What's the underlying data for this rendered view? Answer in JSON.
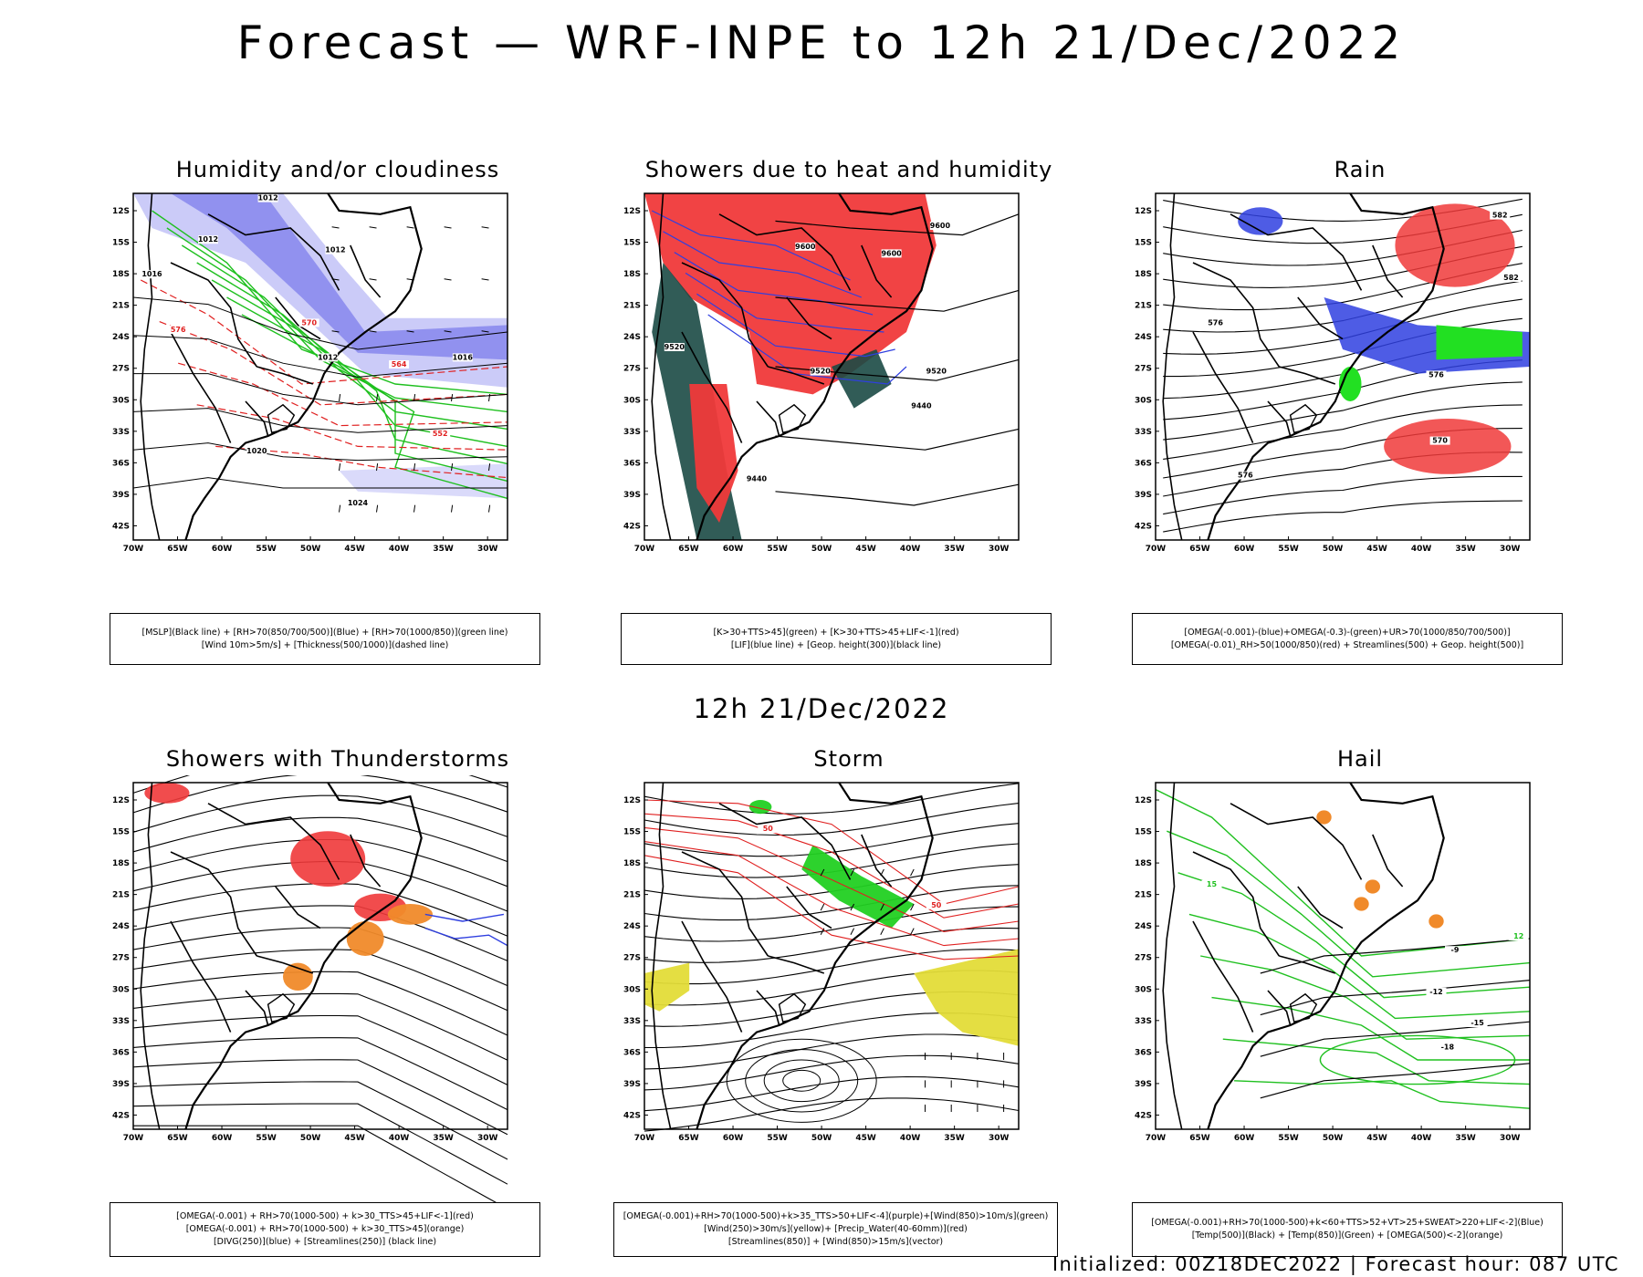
{
  "title": "Forecast — WRF-INPE to 12h 21/Dec/2022",
  "mid_title": "12h 21/Dec/2022",
  "footer": "Initialized: 00Z18DEC2022 | Forecast hour: 087 UTC",
  "axes": {
    "lat_labels": [
      "12S",
      "15S",
      "18S",
      "21S",
      "24S",
      "27S",
      "30S",
      "33S",
      "36S",
      "39S",
      "42S"
    ],
    "lon_labels": [
      "70W",
      "65W",
      "60W",
      "55W",
      "50W",
      "45W",
      "40W",
      "35W",
      "30W"
    ]
  },
  "panels": [
    {
      "id": "humidity",
      "title": "Humidity and/or cloudiness",
      "legend": [
        "[MSLP](Black line) + [RH>70(850/700/500)](Blue) + [RH>70(1000/850)](green line)",
        "[Wind 10m>5m/s] + [Thickness(500/1000)](dashed line)"
      ],
      "contour_labels": [
        "1012",
        "1012",
        "1012",
        "1016",
        "1016",
        "1012",
        "1020",
        "1024",
        "570",
        "576",
        "564",
        "552"
      ],
      "colors": {
        "fill": "#6b6bea",
        "line": "#1fc01f",
        "dashed": "#e02020"
      }
    },
    {
      "id": "showers-heat",
      "title": "Showers due to heat and humidity",
      "legend": [
        "[K>30+TTS>45](green) + [K>30+TTS>45+LIF<-1](red)",
        "[LIF](blue line) + [Geop. height(300)](black line)"
      ],
      "contour_labels": [
        "9600",
        "9600",
        "9600",
        "9520",
        "9520",
        "9520",
        "9440",
        "9440"
      ],
      "colors": {
        "red": "#f0393a",
        "green": "#1b4a45",
        "blue": "#2f3fe0"
      }
    },
    {
      "id": "rain",
      "title": "Rain",
      "legend": [
        "[OMEGA(-0.001)-(blue)+OMEGA(-0.3)-(green)+UR>70(1000/850/700/500)]",
        "[OMEGA(-0.01)_RH>50(1000/850)(red) + Streamlines(500) + Geop. height(500)]"
      ],
      "contour_labels": [
        "582",
        "582",
        "576",
        "576",
        "570",
        "576"
      ],
      "colors": {
        "red": "#f0393a",
        "green": "#22e022",
        "blue": "#2f3fe0"
      }
    },
    {
      "id": "thunderstorms",
      "title": "Showers with Thunderstorms",
      "legend": [
        "[OMEGA(-0.001) + RH>70(1000-500) + k>30_TTS>45+LIF<-1](red)",
        "[OMEGA(-0.001) + RH>70(1000-500) + k>30_TTS>45](orange)",
        "[DIVG(250)](blue) + [Streamlines(250)] (black line)"
      ],
      "contour_labels": [],
      "colors": {
        "red": "#f0393a",
        "orange": "#f08a2a",
        "blue": "#2f3fe0"
      }
    },
    {
      "id": "storm",
      "title": "Storm",
      "legend": [
        "[OMEGA(-0.001)+RH>70(1000-500)+k>35_TTS>50+LIF<-4](purple)+[Wind(850)>10m/s](green)",
        "[Wind(250)>30m/s](yellow)+ [Precip_Water(40-60mm)](red)",
        "[Streamlines(850)] + [Wind(850)>15m/s](vector)"
      ],
      "contour_labels": [
        "50",
        "50"
      ],
      "colors": {
        "yellow": "#e3dc38",
        "green": "#22d022",
        "red": "#e02020"
      }
    },
    {
      "id": "hail",
      "title": "Hail",
      "legend": [
        "[OMEGA(-0.001)+RH>70(1000-500)+k<60+TTS>52+VT>25+SWEAT>220+LIF<-2](Blue)",
        "[Temp(500)](Black) + [Temp(850)](Green) + [OMEGA(500)<-2](orange)"
      ],
      "contour_labels": [
        "-9",
        "-12",
        "-15",
        "-18",
        "15",
        "12"
      ],
      "colors": {
        "green": "#1fc01f",
        "orange": "#f08a2a"
      }
    }
  ]
}
